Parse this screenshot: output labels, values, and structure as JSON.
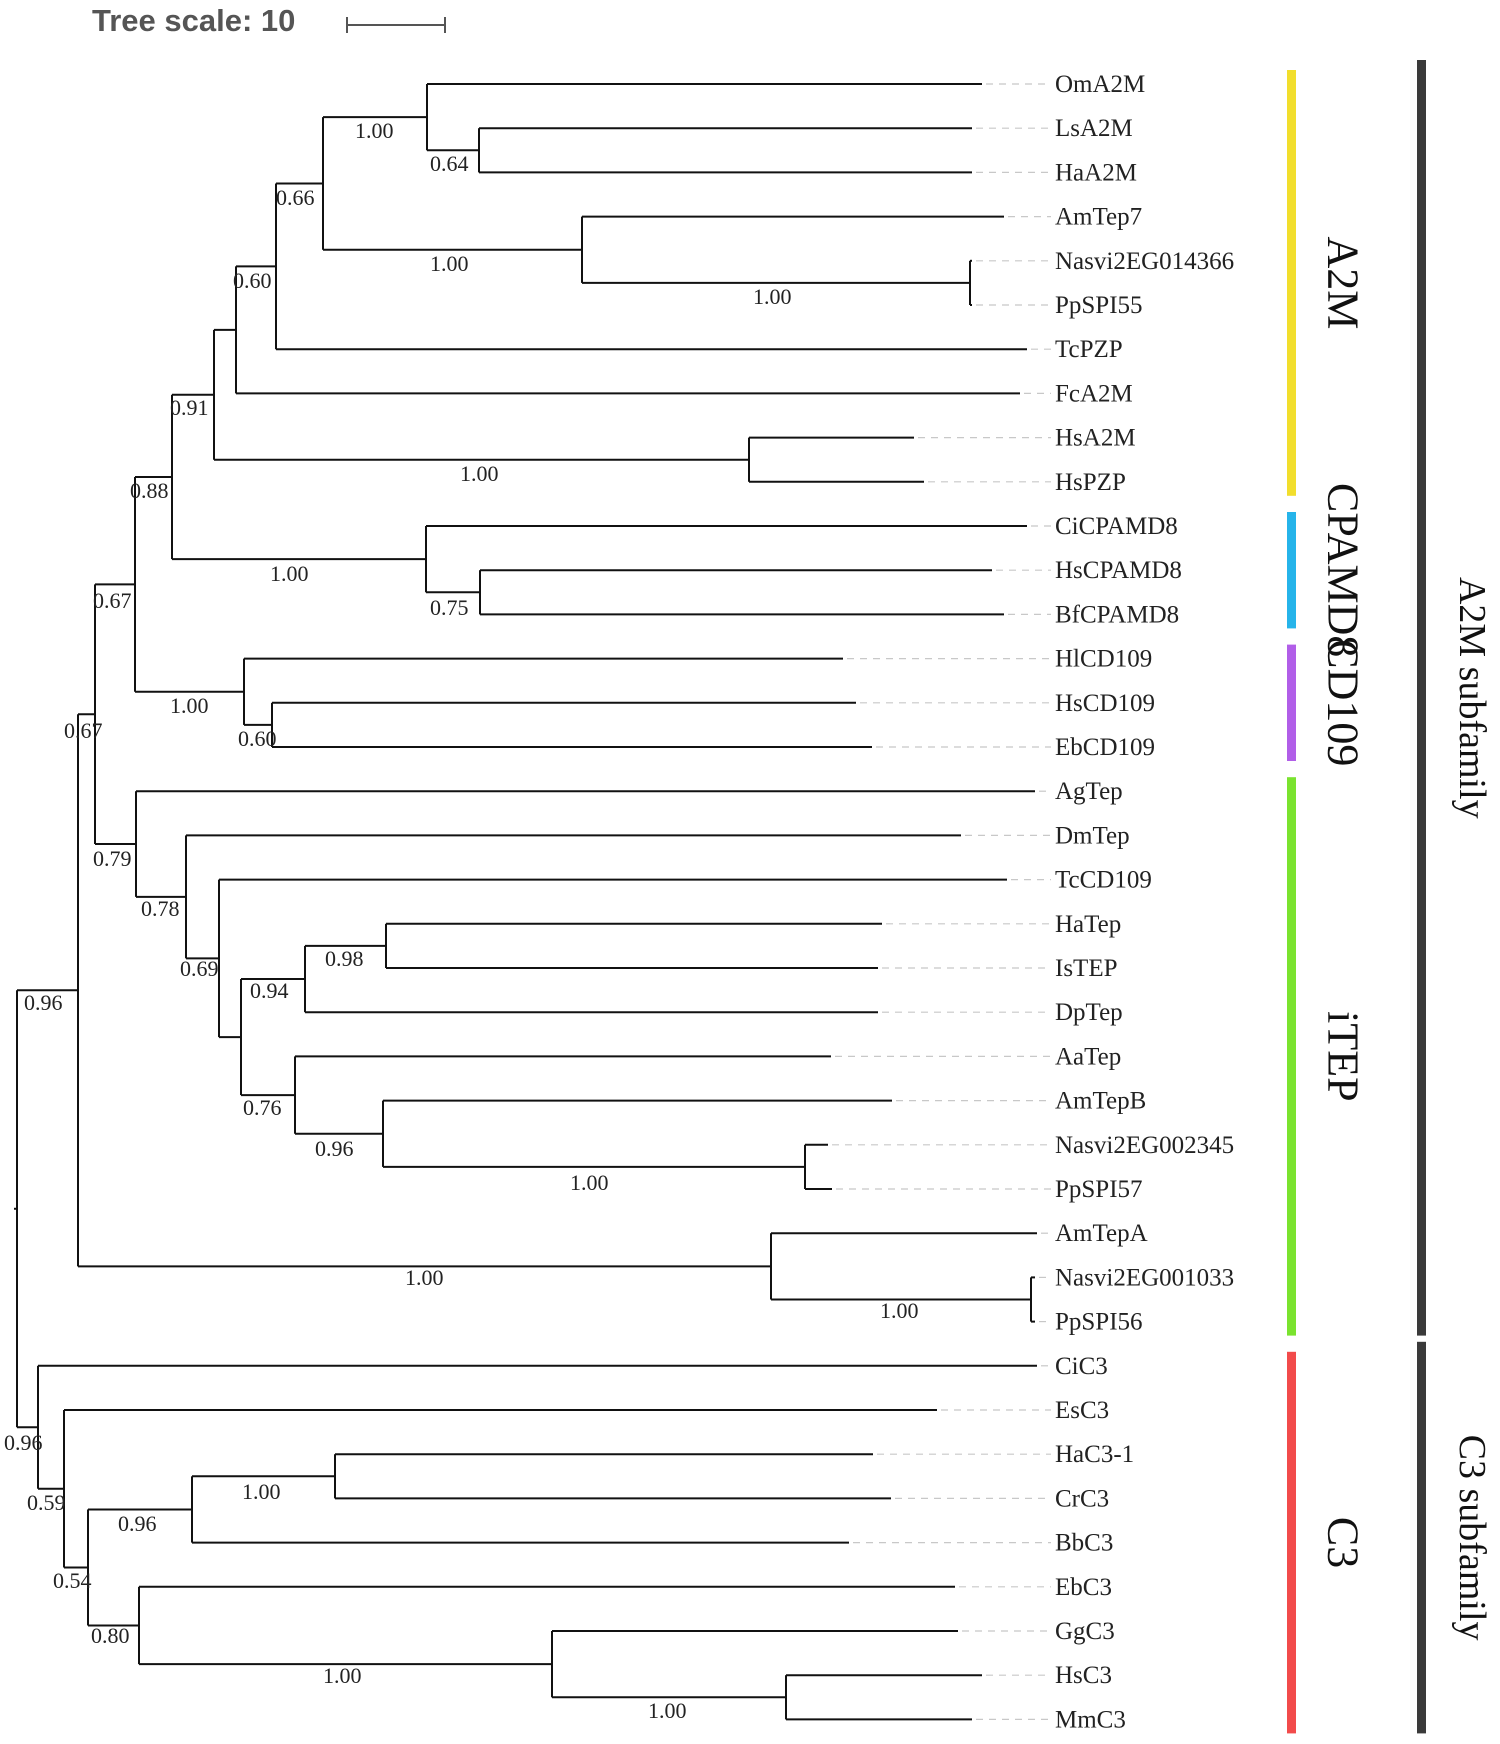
{
  "scale": {
    "label": "Tree scale: 10"
  },
  "leaves": [
    {
      "id": "OmA2M",
      "label": "OmA2M"
    },
    {
      "id": "LsA2M",
      "label": "LsA2M"
    },
    {
      "id": "HaA2M",
      "label": "HaA2M"
    },
    {
      "id": "AmTep7",
      "label": "AmTep7"
    },
    {
      "id": "Nasvi2EG014366",
      "label": "Nasvi2EG014366"
    },
    {
      "id": "PpSPI55",
      "label": "PpSPI55",
      "color": "#e0201f"
    },
    {
      "id": "TcPZP",
      "label": "TcPZP"
    },
    {
      "id": "FcA2M",
      "label": "FcA2M"
    },
    {
      "id": "HsA2M",
      "label": "HsA2M"
    },
    {
      "id": "HsPZP",
      "label": "HsPZP"
    },
    {
      "id": "CiCPAMD8",
      "label": "CiCPAMD8"
    },
    {
      "id": "HsCPAMD8",
      "label": "HsCPAMD8"
    },
    {
      "id": "BfCPAMD8",
      "label": "BfCPAMD8"
    },
    {
      "id": "HlCD109",
      "label": "HlCD109"
    },
    {
      "id": "HsCD109",
      "label": "HsCD109"
    },
    {
      "id": "EbCD109",
      "label": "EbCD109"
    },
    {
      "id": "AgTep",
      "label": "AgTep"
    },
    {
      "id": "DmTep",
      "label": "DmTep"
    },
    {
      "id": "TcCD109",
      "label": "TcCD109"
    },
    {
      "id": "HaTep",
      "label": "HaTep"
    },
    {
      "id": "IsTEP",
      "label": "IsTEP"
    },
    {
      "id": "DpTep",
      "label": "DpTep"
    },
    {
      "id": "AaTep",
      "label": "AaTep"
    },
    {
      "id": "AmTepB",
      "label": "AmTepB"
    },
    {
      "id": "Nasvi2EG002345",
      "label": "Nasvi2EG002345"
    },
    {
      "id": "PpSPI57",
      "label": "PpSPI57",
      "color": "#e0201f"
    },
    {
      "id": "AmTepA",
      "label": "AmTepA"
    },
    {
      "id": "Nasvi2EG001033",
      "label": "Nasvi2EG001033"
    },
    {
      "id": "PpSPI56",
      "label": "PpSPI56",
      "color": "#e0201f"
    },
    {
      "id": "CiC3",
      "label": "CiC3"
    },
    {
      "id": "EsC3",
      "label": "EsC3"
    },
    {
      "id": "HaC3-1",
      "label": "HaC3-1"
    },
    {
      "id": "CrC3",
      "label": "CrC3"
    },
    {
      "id": "BbC3",
      "label": "BbC3"
    },
    {
      "id": "EbC3",
      "label": "EbC3"
    },
    {
      "id": "GgC3",
      "label": "GgC3"
    },
    {
      "id": "HsC3",
      "label": "HsC3"
    },
    {
      "id": "MmC3",
      "label": "MmC3"
    }
  ],
  "internal_nodes": [
    {
      "id": "n_ls_ha",
      "children": [
        "LsA2M",
        "HaA2M"
      ],
      "support": "0.64"
    },
    {
      "id": "n_om",
      "children": [
        "OmA2M",
        "n_ls_ha"
      ],
      "support": "1.00"
    },
    {
      "id": "n_nas55",
      "children": [
        "Nasvi2EG014366",
        "PpSPI55"
      ],
      "support": "1.00"
    },
    {
      "id": "n_am7",
      "children": [
        "AmTep7",
        "n_nas55"
      ],
      "support": "1.00"
    },
    {
      "id": "n_066",
      "children": [
        "n_om",
        "n_am7"
      ],
      "support": "0.66"
    },
    {
      "id": "n_060a",
      "children": [
        "n_066",
        "TcPZP"
      ],
      "support": "0.60"
    },
    {
      "id": "n_fc",
      "children": [
        "n_060a",
        "FcA2M"
      ],
      "support": ""
    },
    {
      "id": "n_hs",
      "children": [
        "HsA2M",
        "HsPZP"
      ],
      "support": "1.00"
    },
    {
      "id": "n_091",
      "children": [
        "n_fc",
        "n_hs"
      ],
      "support": "0.91"
    },
    {
      "id": "n_hsbf",
      "children": [
        "HsCPAMD8",
        "BfCPAMD8"
      ],
      "support": "0.75"
    },
    {
      "id": "n_cpamd",
      "children": [
        "CiCPAMD8",
        "n_hsbf"
      ],
      "support": "1.00"
    },
    {
      "id": "n_088",
      "children": [
        "n_091",
        "n_cpamd"
      ],
      "support": "0.88"
    },
    {
      "id": "n_060b",
      "children": [
        "HsCD109",
        "EbCD109"
      ],
      "support": "0.60"
    },
    {
      "id": "n_cd109",
      "children": [
        "HlCD109",
        "n_060b"
      ],
      "support": "1.00"
    },
    {
      "id": "n_067a",
      "children": [
        "n_088",
        "n_cd109"
      ],
      "support": "0.67"
    },
    {
      "id": "n_098",
      "children": [
        "HaTep",
        "IsTEP"
      ],
      "support": "0.98"
    },
    {
      "id": "n_094",
      "children": [
        "n_098",
        "DpTep"
      ],
      "support": "0.94"
    },
    {
      "id": "n_nas57",
      "children": [
        "Nasvi2EG002345",
        "PpSPI57"
      ],
      "support": "1.00"
    },
    {
      "id": "n_096b",
      "children": [
        "AmTepB",
        "n_nas57"
      ],
      "support": "0.96"
    },
    {
      "id": "n_076",
      "children": [
        "AaTep",
        "n_096b"
      ],
      "support": "0.76"
    },
    {
      "id": "n_x",
      "children": [
        "n_094",
        "n_076"
      ],
      "support": ""
    },
    {
      "id": "n_069",
      "children": [
        "TcCD109",
        "n_x"
      ],
      "support": "0.69"
    },
    {
      "id": "n_078",
      "children": [
        "DmTep",
        "n_069"
      ],
      "support": "0.78"
    },
    {
      "id": "n_079",
      "children": [
        "AgTep",
        "n_078"
      ],
      "support": "0.79"
    },
    {
      "id": "n_067b",
      "children": [
        "n_067a",
        "n_079"
      ],
      "support": "0.67"
    },
    {
      "id": "n_nas56",
      "children": [
        "Nasvi2EG001033",
        "PpSPI56"
      ],
      "support": "1.00"
    },
    {
      "id": "n_amA",
      "children": [
        "AmTepA",
        "n_nas56"
      ],
      "support": "1.00"
    },
    {
      "id": "n_096a",
      "children": [
        "n_067b",
        "n_amA"
      ],
      "support": "0.96"
    },
    {
      "id": "n_hac3",
      "children": [
        "HaC3-1",
        "CrC3"
      ],
      "support": "1.00"
    },
    {
      "id": "n_096d",
      "children": [
        "n_hac3",
        "BbC3"
      ],
      "support": "0.96"
    },
    {
      "id": "n_hsmm",
      "children": [
        "HsC3",
        "MmC3"
      ],
      "support": "1.00"
    },
    {
      "id": "n_gg",
      "children": [
        "GgC3",
        "n_hsmm"
      ],
      "support": "1.00"
    },
    {
      "id": "n_080",
      "children": [
        "EbC3",
        "n_gg"
      ],
      "support": "0.80"
    },
    {
      "id": "n_054",
      "children": [
        "n_096d",
        "n_080"
      ],
      "support": "0.54"
    },
    {
      "id": "n_059",
      "children": [
        "EsC3",
        "n_054"
      ],
      "support": "0.59"
    },
    {
      "id": "n_096c",
      "children": [
        "CiC3",
        "n_059"
      ],
      "support": "0.96"
    },
    {
      "id": "root",
      "children": [
        "n_096a",
        "n_096c"
      ],
      "support": ""
    }
  ],
  "clades": [
    {
      "id": "A2M",
      "label": "A2M",
      "from": "OmA2M",
      "to": "HsPZP",
      "color": "#f2de2c"
    },
    {
      "id": "CPAMD8",
      "label": "CPAMD8",
      "from": "CiCPAMD8",
      "to": "BfCPAMD8",
      "color": "#26b4ea"
    },
    {
      "id": "CD109",
      "label": "CD109",
      "from": "HlCD109",
      "to": "EbCD109",
      "color": "#b15ee8"
    },
    {
      "id": "iTEP",
      "label": "iTEP",
      "from": "AgTep",
      "to": "PpSPI56",
      "color": "#7ae32f"
    },
    {
      "id": "C3",
      "label": "C3",
      "from": "CiC3",
      "to": "MmC3",
      "color": "#f24b4b"
    }
  ],
  "families": [
    {
      "id": "a2m-subfamily",
      "label": "A2M subfamily",
      "from": "OmA2M",
      "to": "PpSPI56",
      "color": "#3a3a3a"
    },
    {
      "id": "c3-subfamily",
      "label": "C3 subfamily",
      "from": "CiC3",
      "to": "MmC3",
      "color": "#3a3a3a"
    }
  ]
}
